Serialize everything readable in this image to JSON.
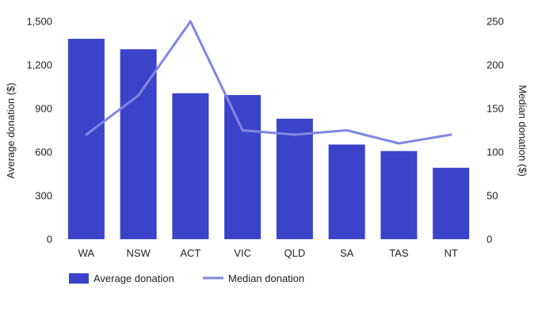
{
  "chart_data": {
    "type": "bar",
    "categories": [
      "WA",
      "NSW",
      "ACT",
      "VIC",
      "QLD",
      "SA",
      "TAS",
      "NT"
    ],
    "series": [
      {
        "name": "Average donation",
        "type": "bar",
        "axis": "left",
        "color": "#3b44c9",
        "values": [
          1380,
          1308,
          1005,
          993,
          830,
          652,
          607,
          492
        ]
      },
      {
        "name": "Median donation",
        "type": "line",
        "axis": "right",
        "color": "#7f87e2",
        "values": [
          120,
          165,
          250,
          125,
          120,
          125,
          110,
          120
        ]
      }
    ],
    "ylabel": "Average donation ($)",
    "y2label": "Median donation ($)",
    "ylim": [
      0,
      1500
    ],
    "y2lim": [
      0,
      250
    ],
    "yticks": [
      "0",
      "300",
      "600",
      "900",
      "1,200",
      "1,500"
    ],
    "y2ticks": [
      "0",
      "50",
      "100",
      "150",
      "200",
      "250"
    ],
    "grid": false,
    "legend": "bottom-left"
  }
}
